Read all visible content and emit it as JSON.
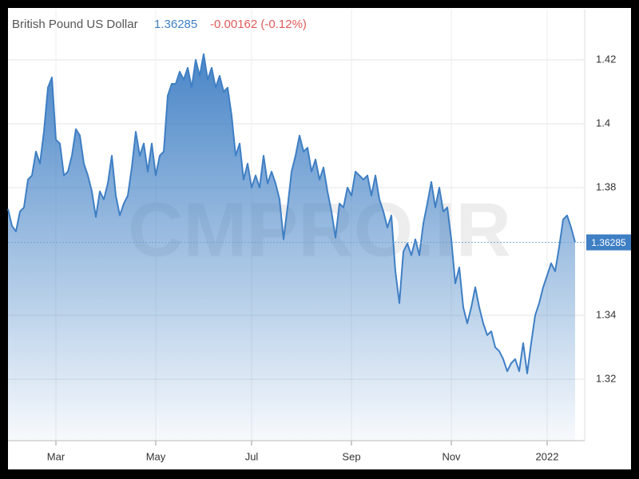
{
  "chart_data": {
    "type": "area",
    "title": "British Pound US Dollar",
    "change": "-0.00162 (-0.12%)",
    "watermark": "CMPRO.IR",
    "categories": [
      null,
      null,
      null,
      null,
      null,
      null,
      null,
      null,
      null,
      null,
      null,
      null,
      "Mar",
      null,
      null,
      null,
      null,
      null,
      null,
      null,
      null,
      null,
      null,
      null,
      null,
      null,
      null,
      null,
      null,
      null,
      null,
      null,
      null,
      null,
      null,
      null,
      null,
      "May",
      null,
      null,
      null,
      null,
      null,
      null,
      null,
      null,
      null,
      null,
      null,
      null,
      null,
      null,
      null,
      null,
      null,
      null,
      null,
      null,
      null,
      null,
      null,
      "Jul",
      null,
      null,
      null,
      null,
      null,
      null,
      null,
      null,
      null,
      null,
      null,
      null,
      null,
      null,
      null,
      null,
      null,
      null,
      null,
      null,
      null,
      null,
      null,
      null,
      "Sep",
      null,
      null,
      null,
      null,
      null,
      null,
      null,
      null,
      null,
      null,
      null,
      null,
      null,
      null,
      null,
      null,
      null,
      null,
      null,
      null,
      null,
      null,
      null,
      null,
      "Nov",
      null,
      null,
      null,
      null,
      null,
      null,
      null,
      null,
      null,
      null,
      null,
      null,
      null,
      null,
      null,
      null,
      null,
      null,
      null,
      null,
      null,
      null,
      null,
      "2022",
      null,
      null,
      null,
      null,
      null,
      null,
      null
    ],
    "series": [
      {
        "name": "British Pound US Dollar",
        "color": "#3f7fc4",
        "values": [
          1.3733,
          1.368,
          1.3663,
          1.3725,
          1.3738,
          1.3825,
          1.3838,
          1.3913,
          1.3875,
          1.3975,
          1.4113,
          1.4145,
          1.395,
          1.3938,
          1.3838,
          1.385,
          1.39,
          1.3983,
          1.3963,
          1.3875,
          1.3838,
          1.3788,
          1.3708,
          1.3788,
          1.3763,
          1.3813,
          1.39,
          1.3775,
          1.3713,
          1.375,
          1.3775,
          1.3863,
          1.3975,
          1.39,
          1.3938,
          1.385,
          1.3938,
          1.3838,
          1.39,
          1.3913,
          1.4088,
          1.4125,
          1.4125,
          1.4163,
          1.4138,
          1.4175,
          1.4113,
          1.42,
          1.415,
          1.4218,
          1.4138,
          1.4175,
          1.4113,
          1.415,
          1.41,
          1.4113,
          1.4025,
          1.39,
          1.3938,
          1.3825,
          1.3875,
          1.38,
          1.3838,
          1.38,
          1.39,
          1.3813,
          1.385,
          1.3813,
          1.3763,
          1.3638,
          1.3738,
          1.385,
          1.39,
          1.3963,
          1.3913,
          1.3925,
          1.385,
          1.3888,
          1.3825,
          1.3863,
          1.3788,
          1.3725,
          1.3643,
          1.375,
          1.3738,
          1.38,
          1.3775,
          1.385,
          1.3838,
          1.3825,
          1.3838,
          1.3775,
          1.3838,
          1.3763,
          1.3725,
          1.3675,
          1.3713,
          1.3538,
          1.3438,
          1.36,
          1.3625,
          1.3588,
          1.3638,
          1.3588,
          1.3688,
          1.375,
          1.3818,
          1.3738,
          1.38,
          1.3725,
          1.3738,
          1.3638,
          1.35,
          1.355,
          1.3425,
          1.3375,
          1.3425,
          1.3488,
          1.3425,
          1.3375,
          1.3338,
          1.335,
          1.33,
          1.3288,
          1.3263,
          1.3225,
          1.325,
          1.3263,
          1.3225,
          1.3313,
          1.3218,
          1.3313,
          1.34,
          1.3438,
          1.3488,
          1.3525,
          1.3563,
          1.3538,
          1.3613,
          1.37,
          1.3713,
          1.3675,
          1.36285
        ]
      }
    ],
    "ylim": [
      1.30075,
      1.43575
    ],
    "yticks": [
      1.32,
      1.34,
      1.38,
      1.4,
      1.42
    ],
    "grid": true,
    "change_color": "#e05a5a"
  }
}
